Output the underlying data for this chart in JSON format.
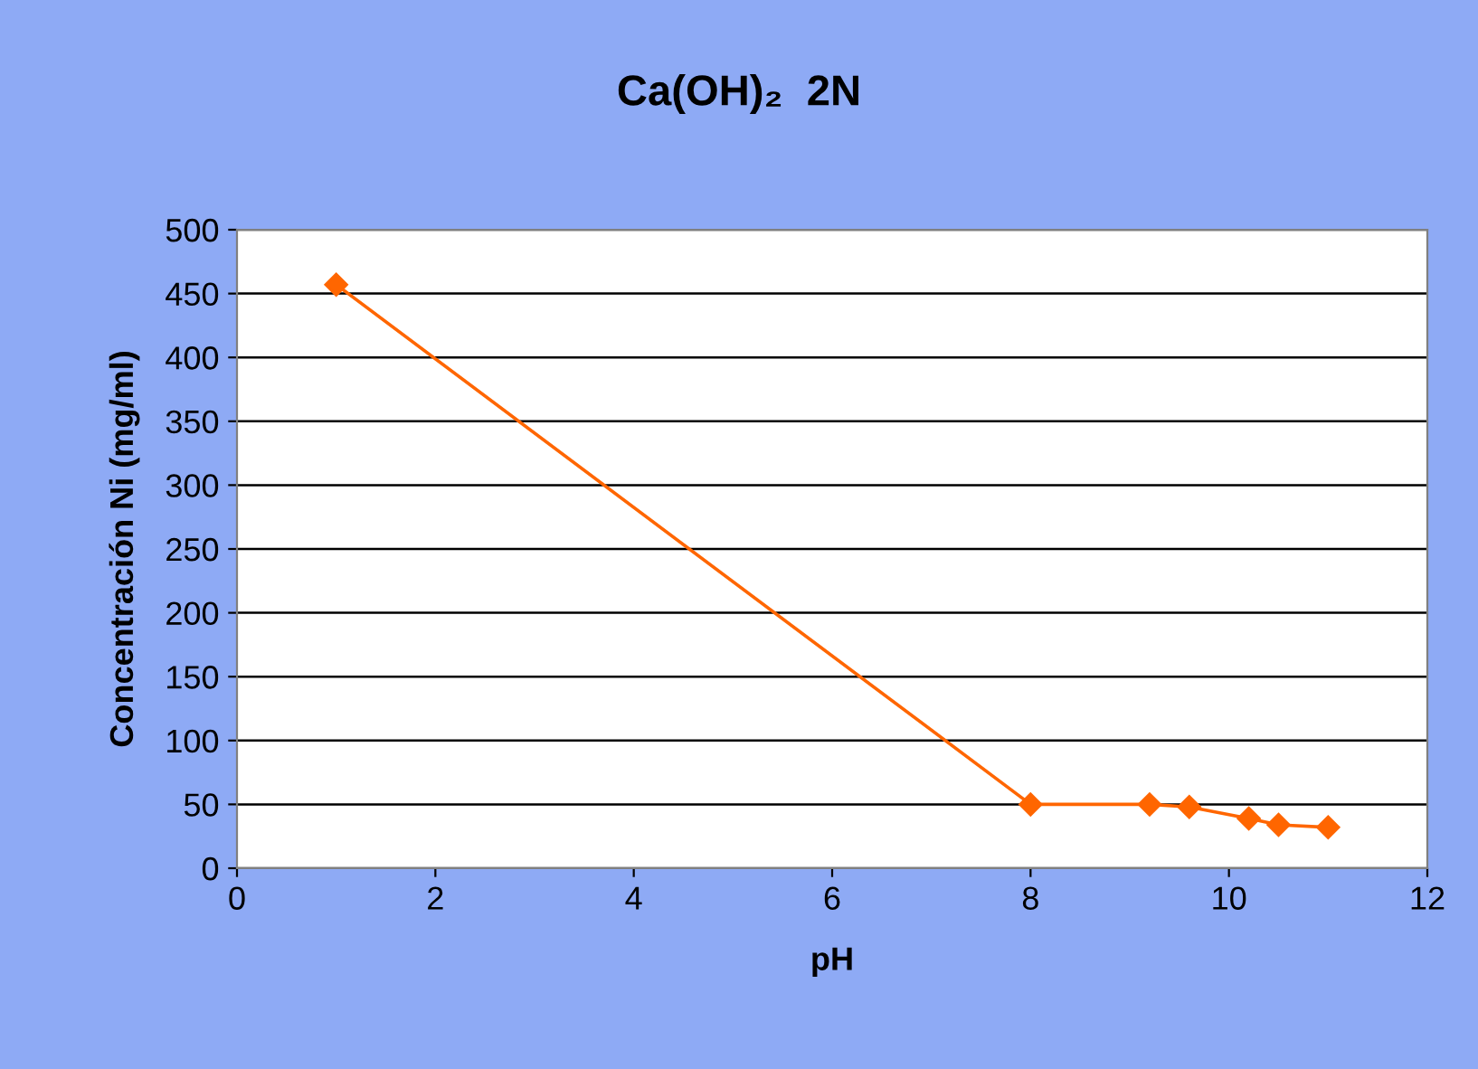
{
  "chart_data": {
    "type": "line",
    "title": "Ca(OH)₂  2N",
    "xlabel": "pH",
    "ylabel": "Concentración Ni (mg/ml)",
    "x": [
      1,
      8,
      9.2,
      9.6,
      10.2,
      10.5,
      11
    ],
    "series": [
      {
        "color": "#ff6600",
        "values": [
          457,
          50,
          50,
          48,
          39,
          34,
          32
        ]
      }
    ],
    "xlim": [
      0,
      12
    ],
    "xticks": [
      0,
      2,
      4,
      6,
      8,
      10,
      12
    ],
    "ylim": [
      0,
      500
    ],
    "yticks": [
      0,
      50,
      100,
      150,
      200,
      250,
      300,
      350,
      400,
      450,
      500
    ],
    "grid": "y",
    "marker": "diamond",
    "line_style": "solid"
  }
}
